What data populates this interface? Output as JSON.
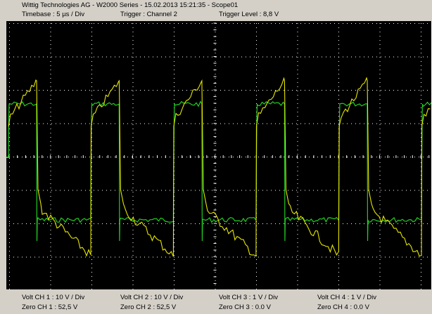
{
  "header": {
    "title": "Wittig Technologies AG - W2000 Series  -  15.02.2013 15:21:35 - Scope01",
    "timebase": "Timebase : 5 µs / Div",
    "trigger": "Trigger : Channel 2",
    "trigger_level": "Trigger Level : 8,8 V"
  },
  "footer": {
    "channels": [
      {
        "volt": "Volt CH 1 : 10 V / Div",
        "zero": "Zero CH 1 : 52,5 V"
      },
      {
        "volt": "Volt CH 2 : 10 V / Div",
        "zero": "Zero CH 2 : 52,5 V"
      },
      {
        "volt": "Volt CH 3 : 1 V / Div",
        "zero": "Zero CH 3 : 0.0 V"
      },
      {
        "volt": "Volt CH 4 : 1 V / Div",
        "zero": "Zero CH 4 : 0.0 V"
      }
    ]
  },
  "colors": {
    "screen_bg": "#000000",
    "grid": "#ffffff",
    "ch1_trace": "#e6e600",
    "ch2_trace": "#22cc22",
    "panel_bg": "#d4d0c8"
  },
  "chart_data": {
    "type": "line",
    "title": "",
    "xlabel": "",
    "ylabel": "",
    "series": [
      {
        "color": "#e6e600",
        "shape": "sawtooth-square"
      },
      {
        "color": "#22cc22",
        "shape": "square"
      }
    ]
  }
}
